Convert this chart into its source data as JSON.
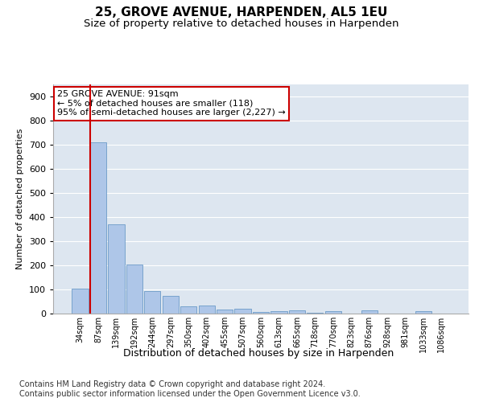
{
  "title1": "25, GROVE AVENUE, HARPENDEN, AL5 1EU",
  "title2": "Size of property relative to detached houses in Harpenden",
  "xlabel": "Distribution of detached houses by size in Harpenden",
  "ylabel": "Number of detached properties",
  "categories": [
    "34sqm",
    "87sqm",
    "139sqm",
    "192sqm",
    "244sqm",
    "297sqm",
    "350sqm",
    "402sqm",
    "455sqm",
    "507sqm",
    "560sqm",
    "613sqm",
    "665sqm",
    "718sqm",
    "770sqm",
    "823sqm",
    "876sqm",
    "928sqm",
    "981sqm",
    "1033sqm",
    "1086sqm"
  ],
  "values": [
    102,
    710,
    370,
    205,
    93,
    72,
    30,
    33,
    17,
    20,
    7,
    10,
    12,
    5,
    10,
    0,
    12,
    0,
    0,
    10,
    0
  ],
  "bar_color": "#aec6e8",
  "bar_edge_color": "#5a8fc0",
  "highlight_bar_index": 1,
  "highlight_line_color": "#cc0000",
  "annotation_text": "25 GROVE AVENUE: 91sqm\n← 5% of detached houses are smaller (118)\n95% of semi-detached houses are larger (2,227) →",
  "annotation_box_color": "#ffffff",
  "annotation_box_edge": "#cc0000",
  "ylim": [
    0,
    950
  ],
  "yticks": [
    0,
    100,
    200,
    300,
    400,
    500,
    600,
    700,
    800,
    900
  ],
  "background_color": "#dde6f0",
  "footer": "Contains HM Land Registry data © Crown copyright and database right 2024.\nContains public sector information licensed under the Open Government Licence v3.0.",
  "title1_fontsize": 11,
  "title2_fontsize": 9.5,
  "xlabel_fontsize": 9,
  "ylabel_fontsize": 8,
  "annotation_fontsize": 8,
  "footer_fontsize": 7
}
